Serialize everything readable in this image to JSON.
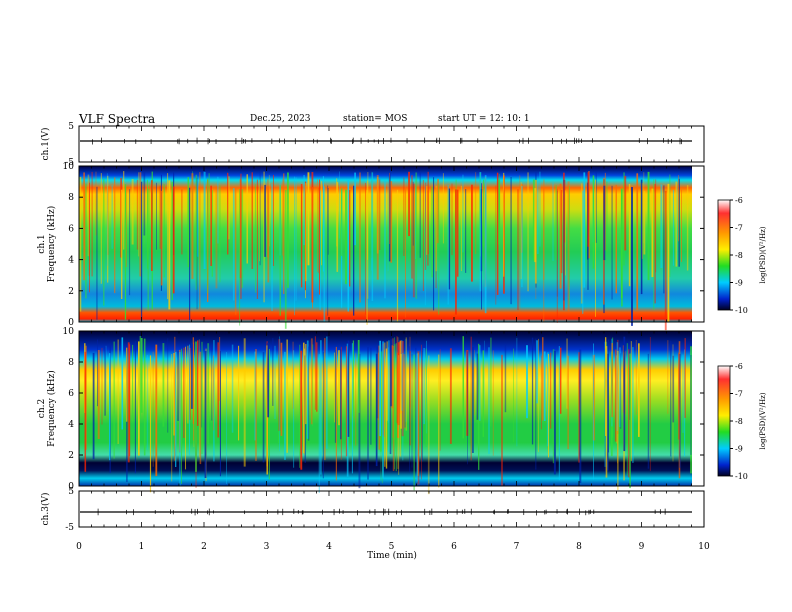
{
  "header": {
    "title": "VLF Spectra",
    "date": "Dec.25, 2023",
    "station": "station= MOS",
    "start": "start  UT =   12: 10: 1"
  },
  "chart_data": [
    {
      "type": "line",
      "name": "ch1-waveform",
      "ylabel": "ch.1(V)",
      "ylim": [
        -5,
        5
      ],
      "yticks": [
        5,
        -5
      ],
      "baseline": -1.8
    },
    {
      "type": "heatmap",
      "name": "ch1-spectrogram",
      "ylabel": "ch.1\nFrequency (kHz)",
      "ylim": [
        0,
        10
      ],
      "yticks": [
        0,
        2,
        4,
        6,
        8,
        10
      ],
      "xlim": [
        0,
        10
      ],
      "colorbar": {
        "label": "log(PSD)(V²/Hz)",
        "range": [
          -10,
          -6
        ],
        "ticks": [
          -6,
          -7,
          -8,
          -9,
          -10
        ]
      }
    },
    {
      "type": "heatmap",
      "name": "ch2-spectrogram",
      "ylabel": "ch.2\nFrequency (kHz)",
      "ylim": [
        0,
        10
      ],
      "yticks": [
        0,
        2,
        4,
        6,
        8,
        10
      ],
      "xlim": [
        0,
        10
      ],
      "colorbar": {
        "label": "log(PSD)(V²/Hz)",
        "range": [
          -10,
          -6
        ],
        "ticks": [
          -6,
          -7,
          -8,
          -9,
          -10
        ]
      }
    },
    {
      "type": "line",
      "name": "ch3-waveform",
      "ylabel": "ch.3(V)",
      "ylim": [
        -5,
        5
      ],
      "yticks": [
        5,
        -5
      ],
      "baseline": -1.8
    }
  ],
  "xaxis": {
    "label": "Time  (min)",
    "range": [
      0,
      10
    ],
    "ticks": [
      0,
      1,
      2,
      3,
      4,
      5,
      6,
      7,
      8,
      9,
      10
    ]
  }
}
